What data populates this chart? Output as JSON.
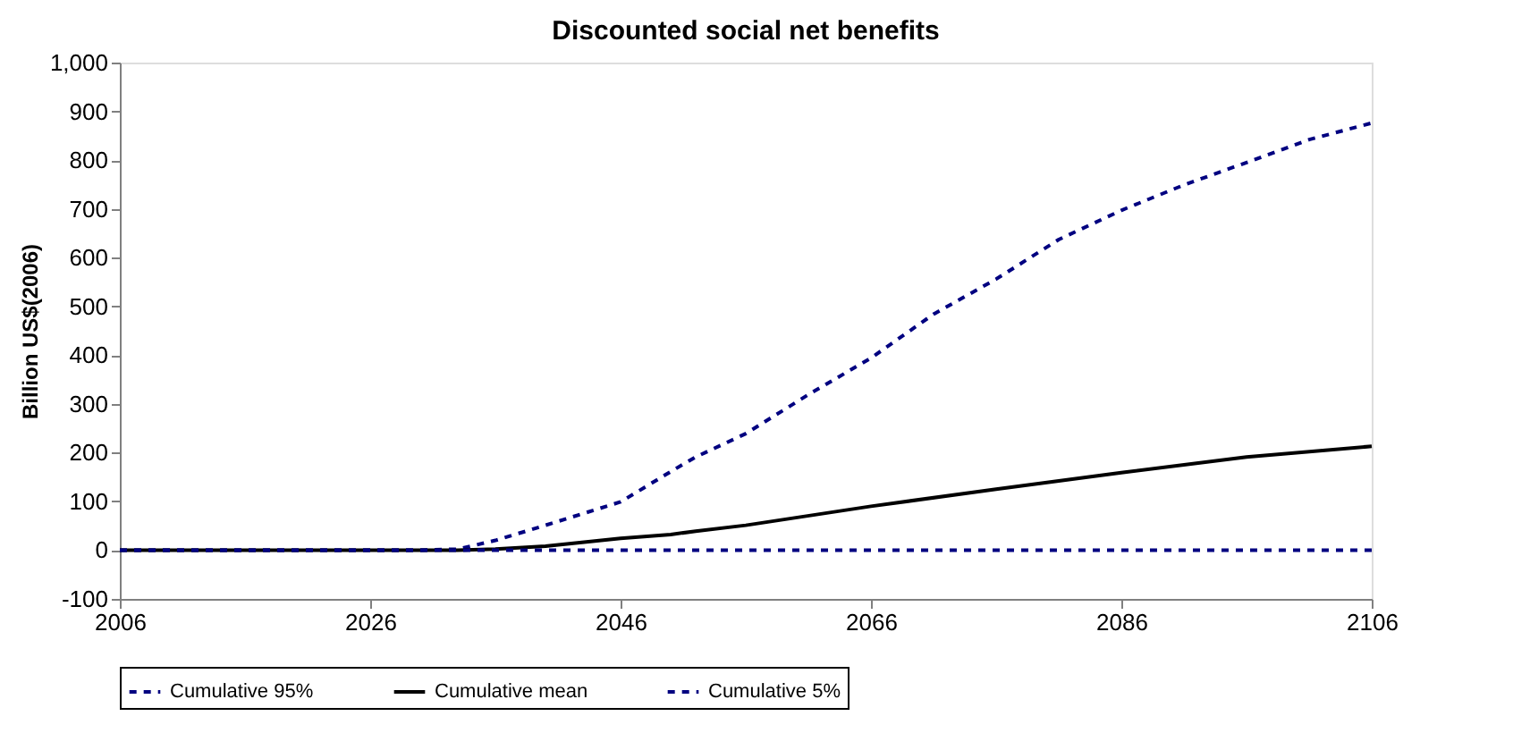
{
  "chart_data": {
    "type": "line",
    "title": "Discounted social net benefits",
    "ylabel": "Billion US$(2006)",
    "xlim": [
      2006,
      2106
    ],
    "xticks": [
      2006,
      2026,
      2046,
      2066,
      2086,
      2106
    ],
    "ylim": [
      -100,
      1000
    ],
    "yticks": [
      -100,
      0,
      100,
      200,
      300,
      400,
      500,
      600,
      700,
      800,
      900,
      {
        "value": 1000,
        "label": "1,000"
      }
    ],
    "grid": false,
    "legend": "bottom",
    "marker": "none",
    "series": [
      {
        "name": "Cumulative 95%",
        "color": "#000080",
        "line_style": "dashed",
        "x": [
          2006,
          2030,
          2033,
          2036,
          2040,
          2046,
          2050,
          2052,
          2056,
          2061,
          2066,
          2071,
          2076,
          2081,
          2086,
          2091,
          2096,
          2101,
          2106
        ],
        "values": [
          0,
          0,
          2,
          20,
          51,
          99,
          161,
          191,
          239,
          319,
          394,
          484,
          556,
          637,
          697,
          749,
          795,
          842,
          876
        ]
      },
      {
        "name": "Cumulative mean",
        "color": "#000000",
        "line_style": "solid",
        "x": [
          2006,
          2033,
          2036,
          2040,
          2046,
          2050,
          2052,
          2056,
          2066,
          2076,
          2086,
          2096,
          2106
        ],
        "values": [
          0,
          0,
          2,
          8,
          24,
          32,
          39,
          51,
          90,
          125,
          159,
          191,
          213
        ]
      },
      {
        "name": "Cumulative 5%",
        "color": "#000080",
        "line_style": "dashed",
        "x": [
          2006,
          2106
        ],
        "values": [
          0,
          0
        ]
      }
    ]
  }
}
